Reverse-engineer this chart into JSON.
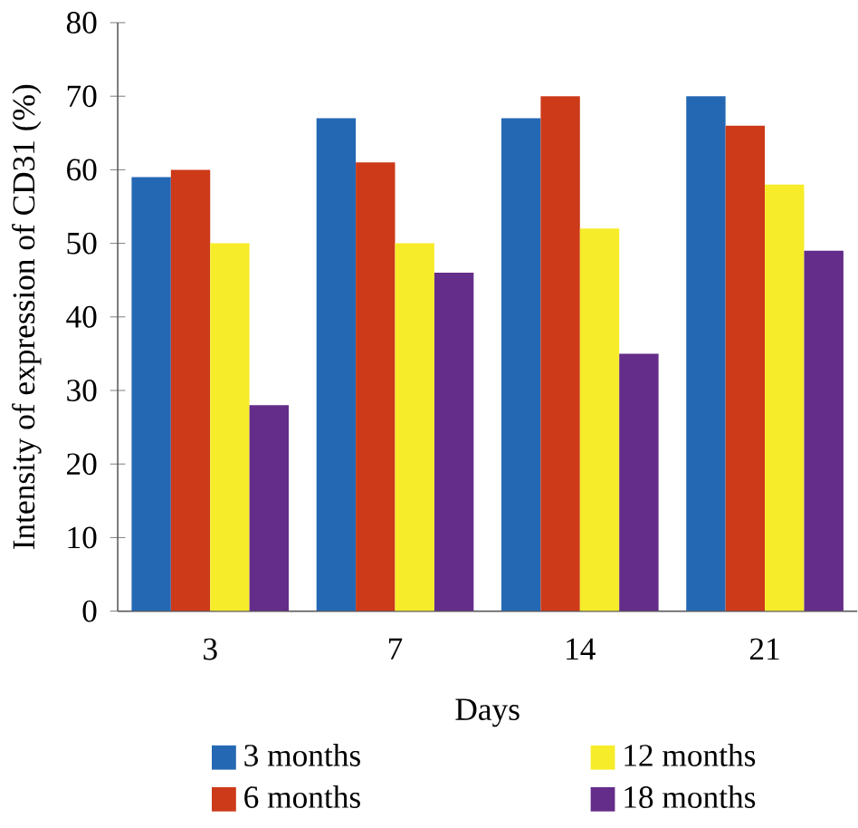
{
  "chart_data": {
    "type": "bar",
    "xlabel": "Days",
    "ylabel": "Intensity of expression of CD31 (%)",
    "categories": [
      "3",
      "7",
      "14",
      "21"
    ],
    "series": [
      {
        "name": "3 months",
        "color": "#2468b4",
        "values": [
          59,
          67,
          67,
          70
        ]
      },
      {
        "name": "6 months",
        "color": "#cc3a1a",
        "values": [
          60,
          61,
          70,
          66
        ]
      },
      {
        "name": "12 months",
        "color": "#f7ec2a",
        "values": [
          50,
          50,
          52,
          58
        ]
      },
      {
        "name": "18 months",
        "color": "#642d8a",
        "values": [
          28,
          46,
          35,
          49
        ]
      }
    ],
    "ylim": [
      0,
      80
    ],
    "yticks": [
      0,
      10,
      20,
      30,
      40,
      50,
      60,
      70,
      80
    ],
    "legend": "bottom",
    "grid": false
  }
}
